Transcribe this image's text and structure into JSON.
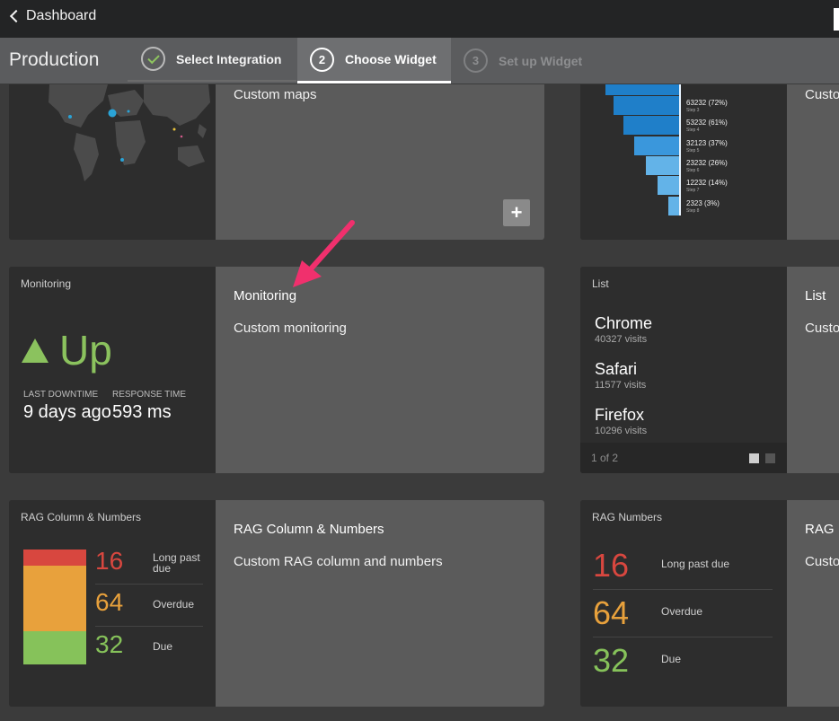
{
  "topbar": {
    "back_label": "Dashboard"
  },
  "wizard": {
    "title": "Production",
    "steps": [
      {
        "number": "",
        "label": "Select Integration",
        "state": "done"
      },
      {
        "number": "2",
        "label": "Choose Widget",
        "state": "active"
      },
      {
        "number": "3",
        "label": "Set up Widget",
        "state": "pending"
      }
    ]
  },
  "cards": {
    "maps": {
      "description": "Custom maps",
      "add_label": "+"
    },
    "funnel_right": {
      "description_fragment": "Custo"
    },
    "monitoring": {
      "preview_label": "Monitoring",
      "status": "Up",
      "last_downtime_label": "LAST DOWNTIME",
      "last_downtime_value": "9 days ago",
      "response_time_label": "RESPONSE TIME",
      "response_time_value": "593 ms",
      "title": "Monitoring",
      "description": "Custom monitoring"
    },
    "list": {
      "preview_label": "List",
      "items": [
        {
          "name": "Chrome",
          "visits": "40327 visits"
        },
        {
          "name": "Safari",
          "visits": "11577 visits"
        },
        {
          "name": "Firefox",
          "visits": "10296 visits"
        }
      ],
      "pager": "1 of 2",
      "title": "List",
      "description_fragment": "Custo"
    },
    "rag_column": {
      "preview_label": "RAG Column & Numbers",
      "rows": [
        {
          "value": "16",
          "label": "Long past due",
          "color": "#d8473f"
        },
        {
          "value": "64",
          "label": "Overdue",
          "color": "#e8a13c"
        },
        {
          "value": "32",
          "label": "Due",
          "color": "#86c25a"
        }
      ],
      "title": "RAG Column & Numbers",
      "description": "Custom RAG column and numbers"
    },
    "rag_numbers": {
      "preview_label": "RAG Numbers",
      "rows": [
        {
          "value": "16",
          "label": "Long past due"
        },
        {
          "value": "64",
          "label": "Overdue"
        },
        {
          "value": "32",
          "label": "Due"
        }
      ],
      "title_fragment": "RAG I",
      "description_fragment": "Custo"
    }
  },
  "funnel": [
    {
      "label": "63232 (72%)",
      "step": "Step 3"
    },
    {
      "label": "53232 (61%)",
      "step": "Step 4"
    },
    {
      "label": "32123 (37%)",
      "step": "Step 5"
    },
    {
      "label": "23232 (26%)",
      "step": "Step 6"
    },
    {
      "label": "12232 (14%)",
      "step": "Step 7"
    },
    {
      "label": "2323 (3%)",
      "step": "Step 8"
    }
  ],
  "colors": {
    "up": "#8bc25e",
    "accent_arrow": "#f0306d",
    "funnel_dark": "#1f7fc9",
    "funnel_light": "#63b3e8"
  }
}
